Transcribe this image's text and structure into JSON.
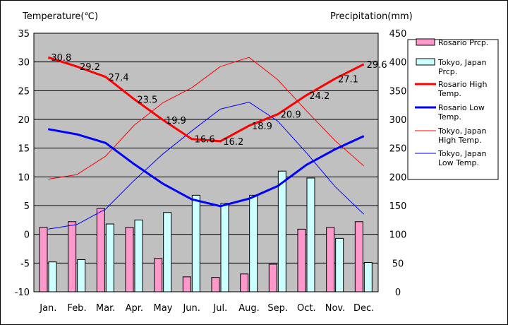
{
  "chart_data": {
    "type": "bar+line",
    "title": "",
    "ylabel_left": "Temperature(℃)",
    "ylabel_right": "Precipitation(mm)",
    "ylim_left": [
      -10,
      35
    ],
    "ylim_right": [
      0,
      450
    ],
    "yticks_left": [
      "35",
      "30",
      "25",
      "20",
      "15",
      "10",
      "5",
      "0",
      "-5",
      "-10"
    ],
    "yticks_right": [
      "450",
      "400",
      "350",
      "300",
      "250",
      "200",
      "150",
      "100",
      "50",
      "0"
    ],
    "categories": [
      "Jan.",
      "Feb.",
      "Mar.",
      "Apr.",
      "May",
      "Jun.",
      "Jul.",
      "Aug.",
      "Sep.",
      "Oct.",
      "Nov.",
      "Dec."
    ],
    "grid": true,
    "legend_position": "right",
    "bars": [
      {
        "name": "Rosario Prcp.",
        "color": "#ff99cc",
        "values": [
          112,
          122,
          145,
          112,
          58,
          26,
          25,
          31,
          48,
          109,
          112,
          122
        ]
      },
      {
        "name": "Tokyo, Japan Prcp.",
        "color": "#ccffff",
        "values": [
          52,
          56,
          118,
          125,
          138,
          168,
          154,
          168,
          210,
          198,
          93,
          51
        ]
      }
    ],
    "lines": [
      {
        "name": "Rosario High Temp.",
        "color": "#ff0000",
        "width": 3,
        "values": [
          30.8,
          29.2,
          27.4,
          23.5,
          19.9,
          16.6,
          16.2,
          18.9,
          20.9,
          24.2,
          27.1,
          29.6
        ],
        "labels": [
          "30.8",
          "29.2",
          "27.4",
          "23.5",
          "19.9",
          "16.6",
          "16.2",
          "18.9",
          "20.9",
          "24.2",
          "27.1",
          "29.6"
        ]
      },
      {
        "name": "Rosario Low Temp.",
        "color": "#0000ff",
        "width": 3,
        "values": [
          18.3,
          17.4,
          15.9,
          12.2,
          8.8,
          6.1,
          4.9,
          6.2,
          8.4,
          12.1,
          14.8,
          17.1
        ]
      },
      {
        "name": "Tokyo, Japan High Temp.",
        "color": "#ff0000",
        "width": 1,
        "values": [
          9.6,
          10.4,
          13.6,
          19.0,
          22.9,
          25.5,
          29.2,
          30.8,
          26.9,
          21.5,
          16.3,
          11.9
        ]
      },
      {
        "name": "Tokyo, Japan Low Temp.",
        "color": "#0000ff",
        "width": 1,
        "values": [
          0.9,
          1.7,
          4.4,
          9.4,
          14.0,
          18.0,
          21.8,
          23.0,
          19.7,
          14.2,
          8.3,
          3.5
        ]
      }
    ]
  },
  "legend": {
    "items": [
      {
        "kind": "box",
        "color": "#ff99cc",
        "lines": [
          "Rosario Prcp."
        ]
      },
      {
        "kind": "box",
        "color": "#ccffff",
        "lines": [
          "Tokyo, Japan",
          "Prcp."
        ]
      },
      {
        "kind": "line",
        "color": "#ff0000",
        "width": 3,
        "lines": [
          "Rosario High",
          "Temp."
        ]
      },
      {
        "kind": "line",
        "color": "#0000ff",
        "width": 3,
        "lines": [
          "Rosario Low",
          "Temp."
        ]
      },
      {
        "kind": "line",
        "color": "#ff0000",
        "width": 1,
        "lines": [
          "Tokyo, Japan",
          "High Temp."
        ]
      },
      {
        "kind": "line",
        "color": "#0000ff",
        "width": 1,
        "lines": [
          "Tokyo, Japan",
          "Low Temp."
        ]
      }
    ]
  }
}
